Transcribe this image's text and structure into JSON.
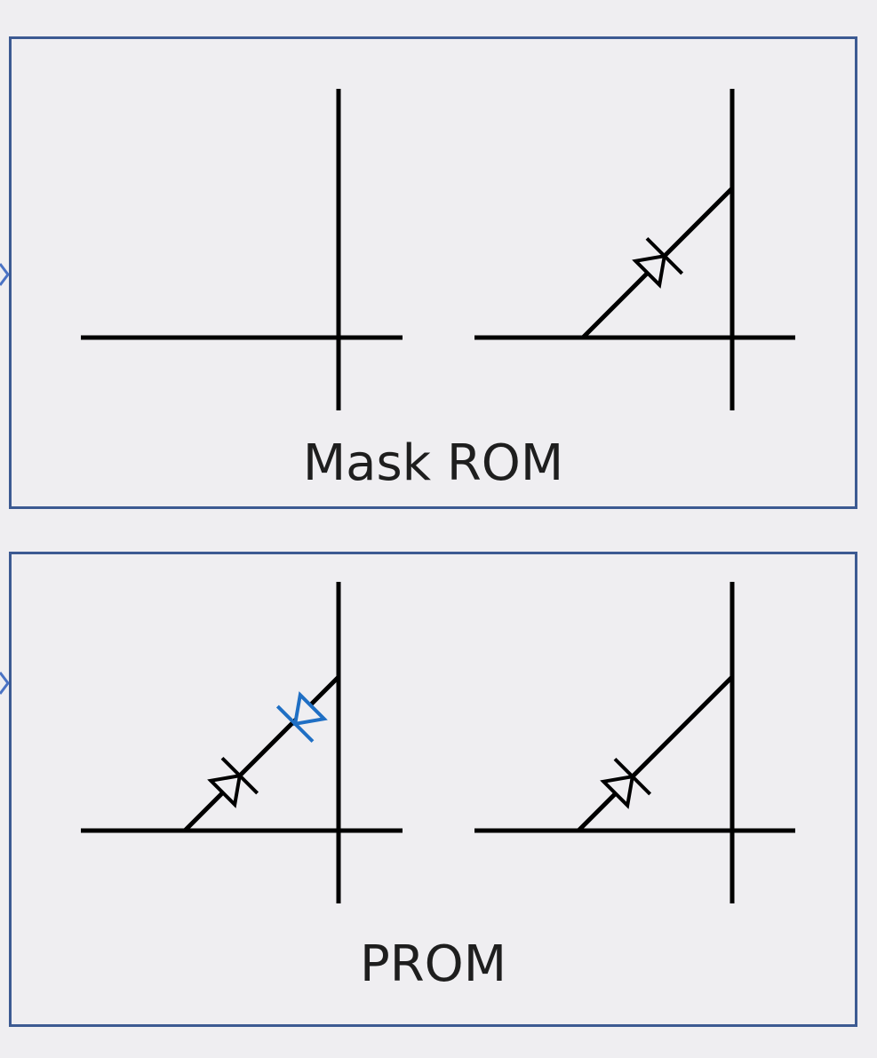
{
  "panels": {
    "mask_rom": {
      "caption": "Mask ROM"
    },
    "prom": {
      "caption": "PROM"
    }
  },
  "colors": {
    "background": "#efeef1",
    "panel_border": "#3c5a92",
    "wire": "#000000",
    "blown_diode": "#1f6fc4"
  }
}
